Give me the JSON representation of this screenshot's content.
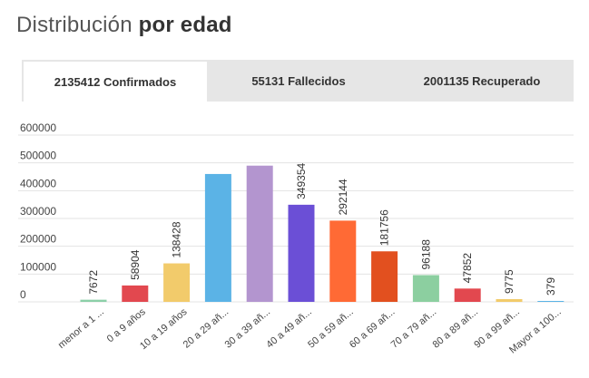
{
  "header": {
    "title_light": "Distribución",
    "title_bold": "por edad"
  },
  "tabs": [
    {
      "label": "2135412 Confirmados",
      "active": true
    },
    {
      "label": "55131 Fallecidos",
      "active": false
    },
    {
      "label": "2001135 Recuperado",
      "active": false
    }
  ],
  "chart_data": {
    "type": "bar",
    "categories": [
      "menor a 1 ...",
      "0 a 9 años",
      "10 a 19 años",
      "20 a 29 añ...",
      "30 a 39 añ...",
      "40 a 49 añ...",
      "50 a 59 añ...",
      "60 a 69 añ...",
      "70 a 79 añ...",
      "80 a 89 añ...",
      "90 a 99 añ...",
      "Mayor a 100..."
    ],
    "values": [
      7672,
      58904,
      138428,
      460000,
      490000,
      349354,
      292144,
      181756,
      96188,
      47852,
      9775,
      379
    ],
    "labels": [
      "7672",
      "58904",
      "138428",
      "",
      "",
      "349354",
      "292144",
      "181756",
      "96188",
      "47852",
      "9775",
      "379"
    ],
    "colors": [
      "#8ccfa8",
      "#e2484f",
      "#f2cb6b",
      "#5bb3e6",
      "#b395cf",
      "#6b4fd6",
      "#ff6a35",
      "#e2501f",
      "#8ccfa0",
      "#e2484f",
      "#f2cb6b",
      "#5bb3e6"
    ],
    "yticks": [
      0,
      100000,
      200000,
      300000,
      400000,
      500000,
      600000
    ],
    "ylim": [
      0,
      600000
    ],
    "grid": true
  }
}
